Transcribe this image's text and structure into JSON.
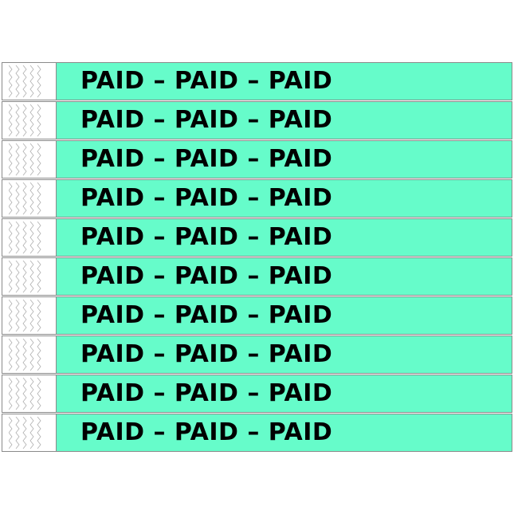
{
  "wristbands": {
    "count": 10,
    "text": "PAID – PAID – PAID",
    "band_color": "#66fcca",
    "tab_color": "#ffffff",
    "tab_icon": "zigzag-security-cut-icon"
  }
}
